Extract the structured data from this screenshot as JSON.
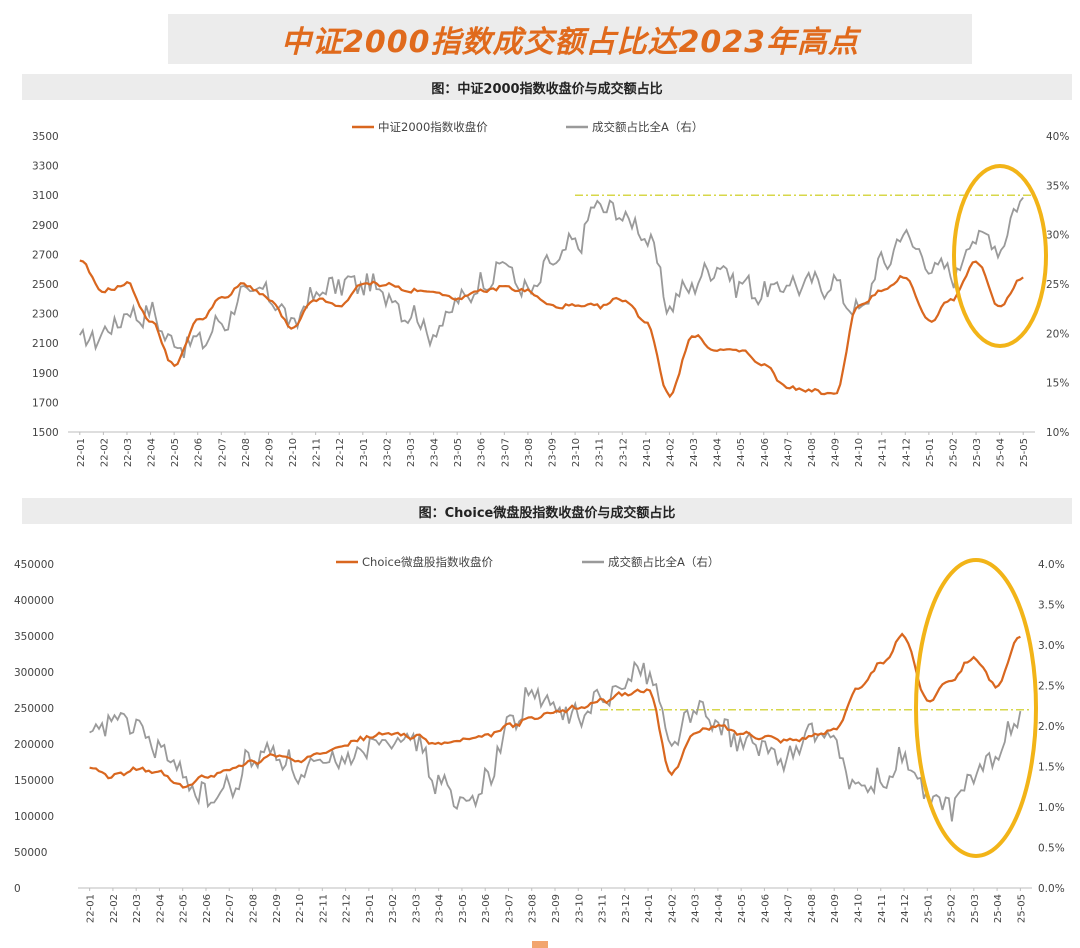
{
  "page_title": "中证2000指数成交额占比达2023年高点",
  "colors": {
    "orange": "#d9671f",
    "gray": "#9a9a9a",
    "highlight_circle": "#f2b418",
    "ref_line": "#d7d74a",
    "title": "#e06a1c"
  },
  "chart_data": [
    {
      "type": "line",
      "title": "图：中证2000指数收盘价与成交额占比",
      "x": [
        "22-01",
        "22-02",
        "22-03",
        "22-04",
        "22-05",
        "22-06",
        "22-07",
        "22-08",
        "22-09",
        "22-10",
        "22-11",
        "22-12",
        "23-01",
        "23-02",
        "23-03",
        "23-04",
        "23-05",
        "23-06",
        "23-07",
        "23-08",
        "23-09",
        "23-10",
        "23-11",
        "23-12",
        "24-01",
        "24-02",
        "24-03",
        "24-04",
        "24-05",
        "24-06",
        "24-07",
        "24-08",
        "24-09",
        "24-10",
        "24-11",
        "24-12",
        "25-01",
        "25-02",
        "25-03",
        "25-04",
        "25-05"
      ],
      "y_left": {
        "ticks": [
          1500,
          1700,
          1900,
          2100,
          2300,
          2500,
          2700,
          2900,
          3100,
          3300,
          3500
        ],
        "range": [
          1500,
          3500
        ]
      },
      "y_right": {
        "ticks": [
          "10%",
          "15%",
          "20%",
          "25%",
          "30%",
          "35%",
          "40%"
        ],
        "range": [
          10,
          40
        ]
      },
      "series": [
        {
          "name": "中证2000指数收盘价",
          "axis": "left",
          "color": "#d9671f",
          "values": [
            2650,
            2450,
            2500,
            2250,
            1950,
            2250,
            2400,
            2500,
            2400,
            2200,
            2400,
            2350,
            2500,
            2500,
            2450,
            2450,
            2400,
            2450,
            2480,
            2450,
            2350,
            2350,
            2350,
            2400,
            2250,
            1750,
            2150,
            2050,
            2050,
            1950,
            1800,
            1780,
            1750,
            2350,
            2450,
            2550,
            2250,
            2400,
            2650,
            2350,
            2550
          ]
        },
        {
          "name": "成交额占比全A（右）",
          "axis": "right",
          "color": "#9a9a9a",
          "values": [
            19,
            20,
            22,
            22,
            19,
            19,
            21,
            24,
            24,
            21,
            24,
            25,
            25,
            24,
            22,
            20,
            23,
            25,
            27,
            24,
            27,
            29,
            33,
            32,
            30,
            23,
            25,
            27,
            25,
            24,
            25,
            25,
            25,
            22,
            27,
            30,
            27,
            26,
            30,
            29,
            34
          ]
        }
      ],
      "reference_line_right": 34,
      "highlight": "circle around 25-01 to 25-05"
    },
    {
      "type": "line",
      "title": "图：Choice微盘股指数收盘价与成交额占比",
      "x": [
        "22-01",
        "22-02",
        "22-03",
        "22-04",
        "22-05",
        "22-06",
        "22-07",
        "22-08",
        "22-09",
        "22-10",
        "22-11",
        "22-12",
        "23-01",
        "23-02",
        "23-03",
        "23-04",
        "23-05",
        "23-06",
        "23-07",
        "23-08",
        "23-09",
        "23-10",
        "23-11",
        "23-12",
        "24-01",
        "24-02",
        "24-03",
        "24-04",
        "24-05",
        "24-06",
        "24-07",
        "24-08",
        "24-09",
        "24-10",
        "24-11",
        "24-12",
        "25-01",
        "25-02",
        "25-03",
        "25-04",
        "25-05"
      ],
      "y_left": {
        "ticks": [
          0,
          50000,
          100000,
          150000,
          200000,
          250000,
          300000,
          350000,
          400000,
          450000
        ],
        "range": [
          0,
          450000
        ]
      },
      "y_right": {
        "ticks": [
          "0.0%",
          "0.5%",
          "1.0%",
          "1.5%",
          "2.0%",
          "2.5%",
          "3.0%",
          "3.5%",
          "4.0%"
        ],
        "range": [
          0,
          4.0
        ]
      },
      "series": [
        {
          "name": "Choice微盘股指数收盘价",
          "axis": "left",
          "color": "#d9671f",
          "values": [
            165000,
            155000,
            165000,
            160000,
            140000,
            155000,
            165000,
            175000,
            185000,
            175000,
            190000,
            200000,
            210000,
            215000,
            210000,
            200000,
            205000,
            210000,
            225000,
            235000,
            245000,
            250000,
            260000,
            270000,
            275000,
            160000,
            215000,
            225000,
            215000,
            210000,
            205000,
            210000,
            220000,
            275000,
            310000,
            350000,
            260000,
            290000,
            320000,
            280000,
            350000
          ]
        },
        {
          "name": "成交额占比全A（右）",
          "axis": "right",
          "color": "#9a9a9a",
          "values": [
            1.8,
            2.1,
            2.0,
            1.7,
            1.4,
            1.1,
            1.2,
            1.6,
            1.7,
            1.4,
            1.5,
            1.6,
            1.8,
            1.9,
            1.8,
            1.3,
            1.0,
            1.3,
            2.0,
            2.4,
            2.2,
            2.1,
            2.3,
            2.6,
            2.7,
            1.8,
            2.2,
            2.0,
            1.8,
            1.7,
            1.6,
            1.9,
            1.8,
            1.2,
            1.3,
            1.6,
            1.1,
            1.0,
            1.4,
            1.6,
            2.2
          ]
        }
      ],
      "reference_line_right": 2.2,
      "highlight": "ellipse around 25-01 to 25-05"
    }
  ]
}
